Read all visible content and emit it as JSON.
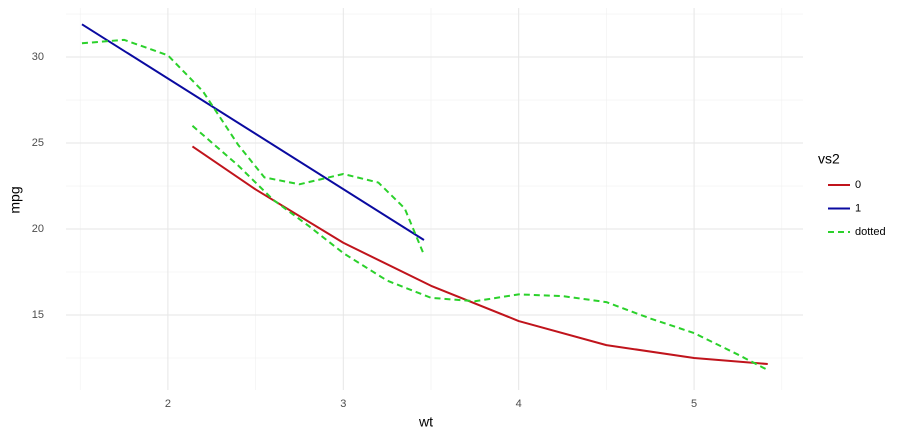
{
  "chart_data": {
    "type": "line",
    "x_label": "wt",
    "y_label": "mpg",
    "xlim": [
      1.419,
      5.621
    ],
    "xticks": [
      2,
      3,
      4,
      5
    ],
    "ylim": [
      10.64,
      32.85
    ],
    "yticks": [
      15,
      20,
      25,
      30
    ],
    "grid": true,
    "legend_title": "vs2",
    "legend_position": "right",
    "series": [
      {
        "name": "0",
        "color": "#c0141c",
        "dash": false,
        "x": [
          2.14,
          2.5,
          3.0,
          3.5,
          4.0,
          4.5,
          5.0,
          5.42
        ],
        "values": [
          24.8,
          22.3,
          19.2,
          16.7,
          14.65,
          13.25,
          12.5,
          12.15
        ]
      },
      {
        "name": "1",
        "color": "#0a0aa0",
        "dash": false,
        "x": [
          1.51,
          3.46
        ],
        "values": [
          31.9,
          19.36
        ]
      },
      {
        "name": "dotted",
        "color": "#2bd12b",
        "dash": true,
        "x": [
          1.51,
          1.75,
          2.0,
          2.2,
          2.4,
          2.55,
          2.75,
          3.0,
          3.2,
          3.35,
          3.46,
          null,
          2.14,
          2.4,
          2.6,
          2.8,
          3.0,
          3.25,
          3.5,
          3.75,
          4.0,
          4.25,
          4.5,
          4.75,
          5.0,
          5.25,
          5.42
        ],
        "values": [
          30.8,
          31.0,
          30.1,
          28.0,
          24.9,
          23.0,
          22.6,
          23.2,
          22.7,
          21.2,
          18.5,
          null,
          26.0,
          23.7,
          21.7,
          20.2,
          18.6,
          17.0,
          16.0,
          15.8,
          16.2,
          16.1,
          15.75,
          14.8,
          13.95,
          12.7,
          11.8
        ]
      }
    ]
  }
}
